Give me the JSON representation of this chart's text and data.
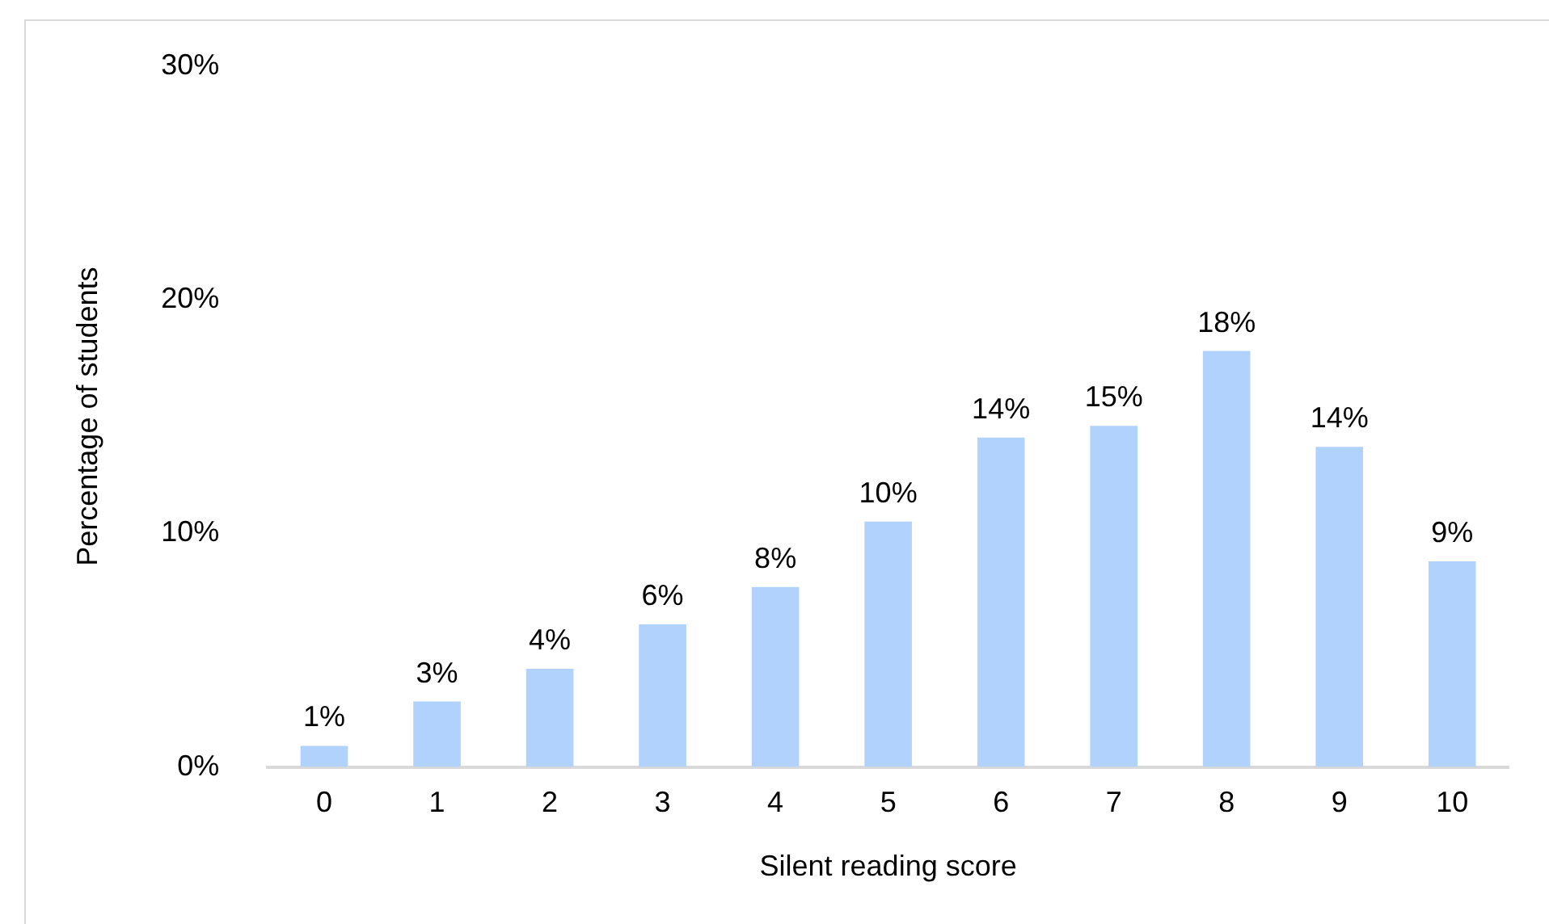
{
  "chart_data": {
    "type": "bar",
    "xlabel": "Silent reading score",
    "ylabel": "Percentage of students",
    "categories": [
      "0",
      "1",
      "2",
      "3",
      "4",
      "5",
      "6",
      "7",
      "8",
      "9",
      "10"
    ],
    "values": [
      0.9,
      2.8,
      4.2,
      6.1,
      7.7,
      10.5,
      14.1,
      14.6,
      17.8,
      13.7,
      8.8
    ],
    "value_labels": [
      "1%",
      "3%",
      "4%",
      "6%",
      "8%",
      "10%",
      "14%",
      "15%",
      "18%",
      "14%",
      "9%"
    ],
    "color": "#b0d2fd",
    "ylim": [
      0,
      30
    ],
    "yticks": [
      {
        "value": 0,
        "label": "0%"
      },
      {
        "value": 10,
        "label": "10%"
      },
      {
        "value": 20,
        "label": "20%"
      },
      {
        "value": 30,
        "label": "30%"
      }
    ],
    "grid": false,
    "legend": false
  }
}
